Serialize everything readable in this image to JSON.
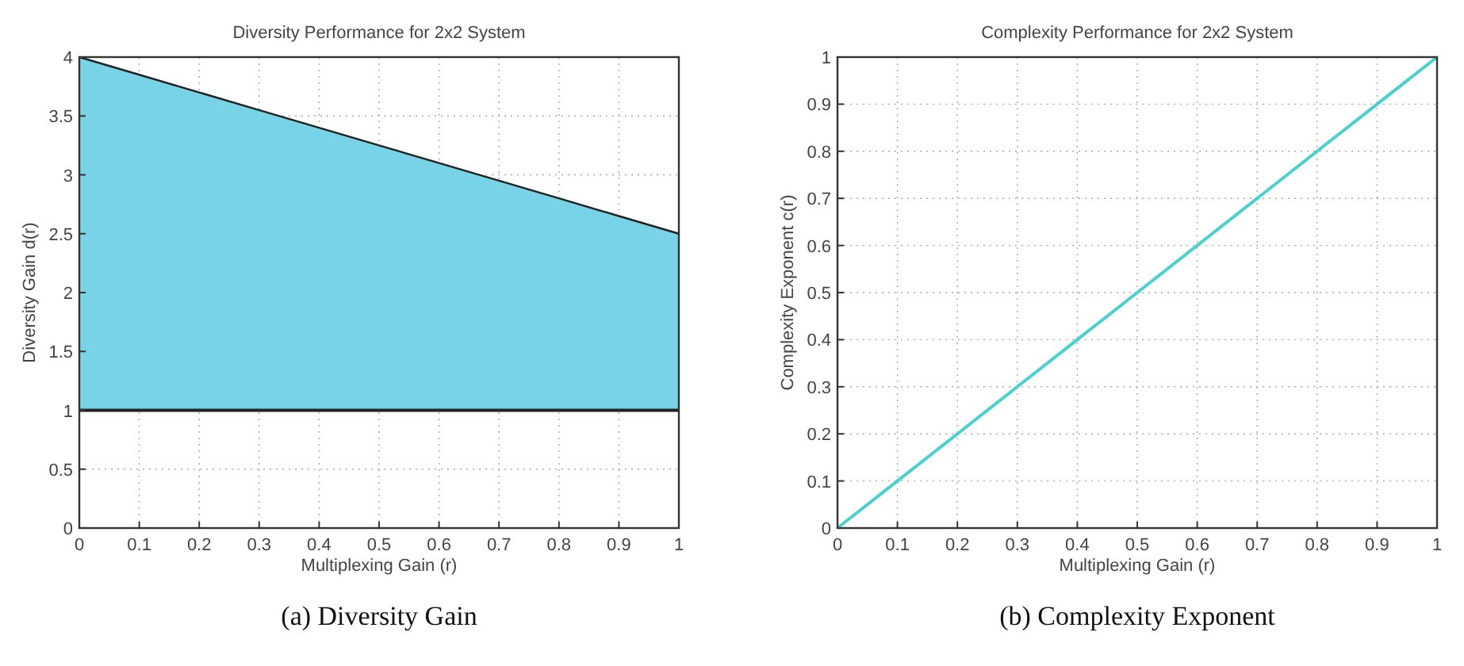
{
  "chart_data": [
    {
      "type": "line",
      "title": "Diversity Performance for 2x2 System",
      "xlabel": "Multiplexing Gain (r)",
      "ylabel": "Diversity Gain d(r)",
      "annotations": [
        "(a)  Diversity Gain"
      ],
      "x": [
        0,
        0.1,
        0.2,
        0.3,
        0.4,
        0.5,
        0.6,
        0.7,
        0.8,
        0.9,
        1
      ],
      "series": [
        {
          "color": "#222222",
          "values": [
            4,
            3.85,
            3.7,
            3.55,
            3.4,
            3.25,
            3.1,
            2.95,
            2.8,
            2.65,
            2.5
          ],
          "lower": [
            1,
            1,
            1,
            1,
            1,
            1,
            1,
            1,
            1,
            1,
            1
          ],
          "upper": [
            4,
            3.85,
            3.7,
            3.55,
            3.4,
            3.25,
            3.1,
            2.95,
            2.8,
            2.65,
            2.5
          ]
        }
      ],
      "ref_lines": [
        {
          "axis": "y",
          "value": 1,
          "color": "#222222"
        }
      ],
      "xlim": [
        0,
        1
      ],
      "xticks": [
        0,
        0.1,
        0.2,
        0.3,
        0.4,
        0.5,
        0.6,
        0.7,
        0.8,
        0.9,
        1
      ],
      "ylim": [
        0,
        4
      ],
      "yticks": [
        0,
        0.5,
        1,
        1.5,
        2,
        2.5,
        3,
        3.5,
        4
      ],
      "grid": true
    },
    {
      "type": "line",
      "title": "Complexity Performance for 2x2 System",
      "xlabel": "Multiplexing Gain (r)",
      "ylabel": "Complexity Exponent c(r)",
      "annotations": [
        "(b)  Complexity Exponent"
      ],
      "x": [
        0,
        0.1,
        0.2,
        0.3,
        0.4,
        0.5,
        0.6,
        0.7,
        0.8,
        0.9,
        1
      ],
      "series": [
        {
          "color": "#4ccfcf",
          "values": [
            0,
            0.1,
            0.2,
            0.3,
            0.4,
            0.5,
            0.6,
            0.7,
            0.8,
            0.9,
            1
          ]
        }
      ],
      "xlim": [
        0,
        1
      ],
      "xticks": [
        0,
        0.1,
        0.2,
        0.3,
        0.4,
        0.5,
        0.6,
        0.7,
        0.8,
        0.9,
        1
      ],
      "ylim": [
        0,
        1
      ],
      "yticks": [
        0,
        0.1,
        0.2,
        0.3,
        0.4,
        0.5,
        0.6,
        0.7,
        0.8,
        0.9,
        1
      ],
      "grid": true
    }
  ]
}
